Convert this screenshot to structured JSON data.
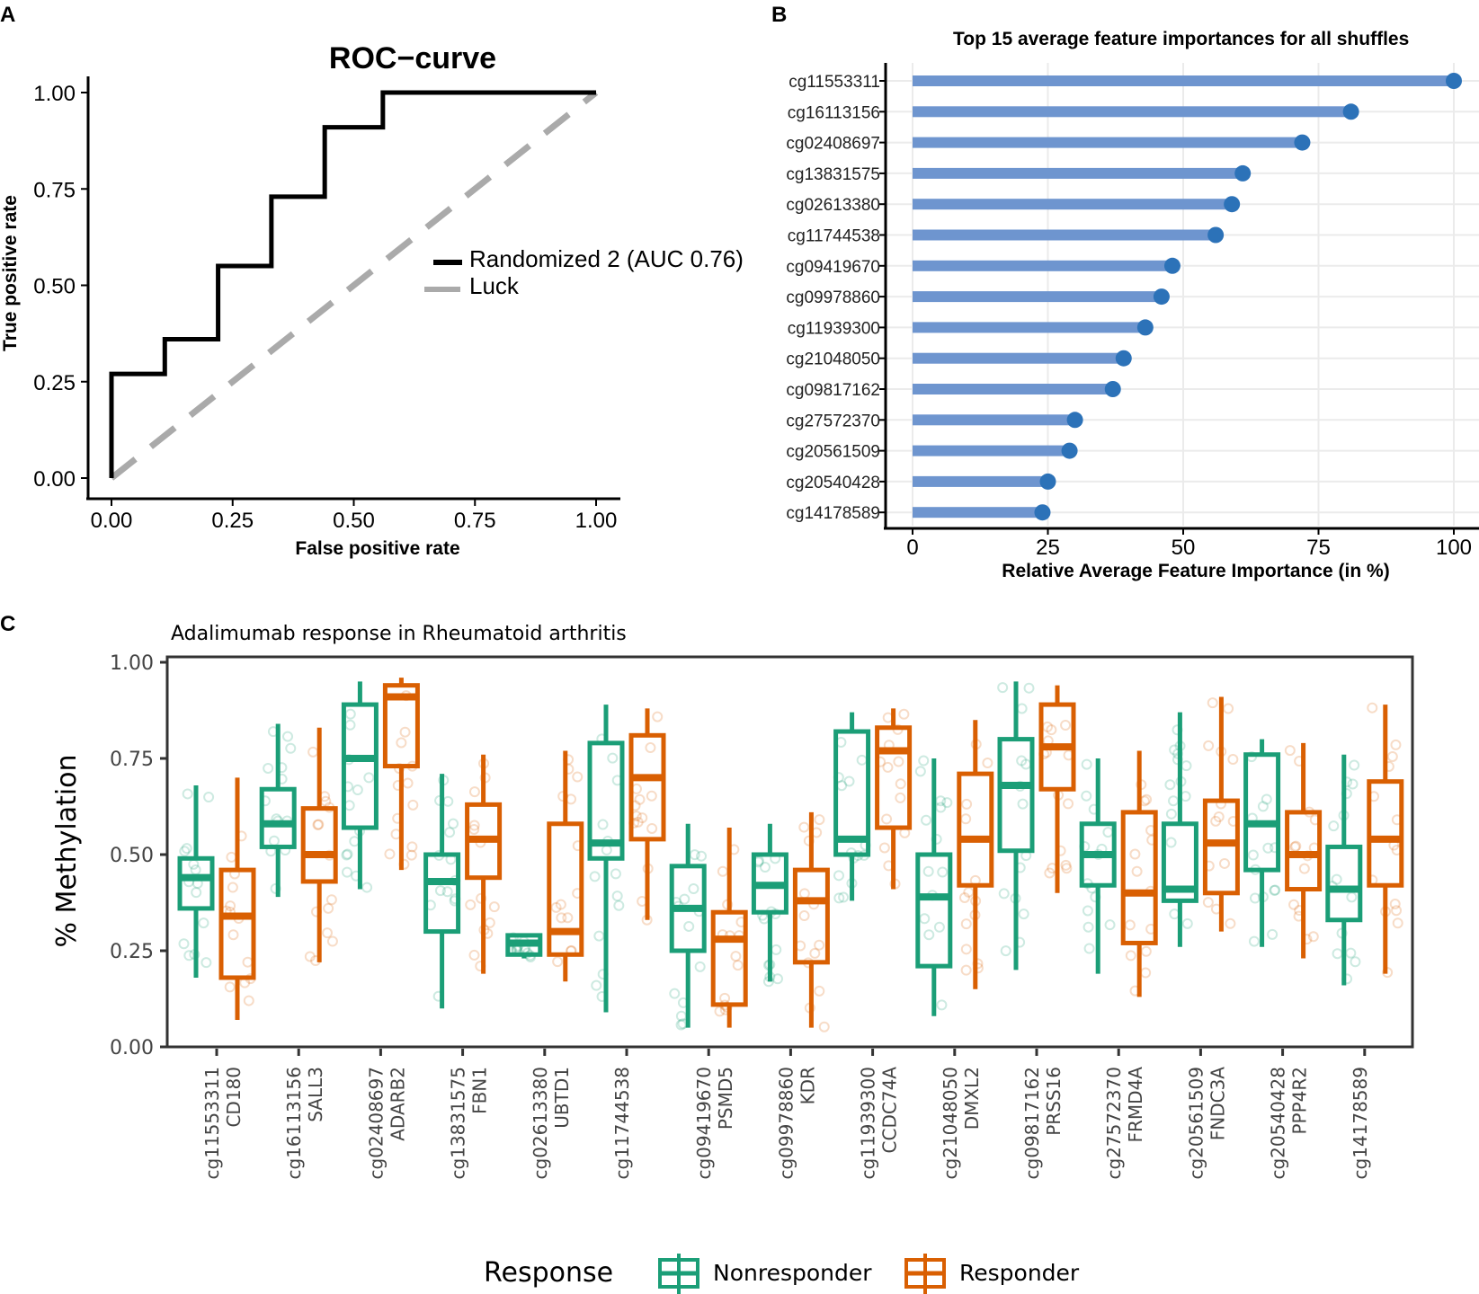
{
  "panel_labels": {
    "a": "A",
    "b": "B",
    "c": "C"
  },
  "colors": {
    "roc_line": "#000000",
    "luck_line": "#aaaaaa",
    "bar": "#6e95cf",
    "dot": "#2c72b8",
    "nonresponder": "#1b9e77",
    "responder": "#d95f02",
    "grid": "#ebebeb"
  },
  "chart_data": [
    {
      "type": "line",
      "title": "ROC−curve",
      "xlabel": "False positive rate",
      "ylabel": "True positive rate",
      "xlim": [
        0,
        1
      ],
      "ylim": [
        0,
        1
      ],
      "x_ticks": [
        "0.00",
        "0.25",
        "0.50",
        "0.75",
        "1.00"
      ],
      "y_ticks": [
        "0.00",
        "0.25",
        "0.50",
        "0.75",
        "1.00"
      ],
      "series": [
        {
          "name": "Randomized 2 (AUC 0.76)",
          "x": [
            0,
            0,
            0.11,
            0.11,
            0.22,
            0.22,
            0.33,
            0.33,
            0.44,
            0.44,
            0.56,
            0.56,
            1.0
          ],
          "y": [
            0,
            0.27,
            0.27,
            0.36,
            0.36,
            0.55,
            0.55,
            0.73,
            0.73,
            0.91,
            0.91,
            1.0,
            1.0
          ]
        },
        {
          "name": "Luck",
          "x": [
            0,
            1
          ],
          "y": [
            0,
            1
          ]
        }
      ],
      "legend": [
        "Randomized 2 (AUC 0.76)",
        "Luck"
      ]
    },
    {
      "type": "bar",
      "title": "Top 15 average feature importances for all shuffles",
      "xlabel": "Relative Average Feature Importance (in %)",
      "ylabel": "",
      "xlim": [
        0,
        100
      ],
      "x_ticks": [
        "0",
        "25",
        "50",
        "75",
        "100"
      ],
      "categories": [
        "cg11553311",
        "cg16113156",
        "cg02408697",
        "cg13831575",
        "cg02613380",
        "cg11744538",
        "cg09419670",
        "cg09978860",
        "cg11939300",
        "cg21048050",
        "cg09817162",
        "cg27572370",
        "cg20561509",
        "cg20540428",
        "cg14178589"
      ],
      "values": [
        100,
        81,
        72,
        61,
        59,
        56,
        48,
        46,
        43,
        39,
        37,
        30,
        29,
        25,
        24
      ]
    },
    {
      "type": "box",
      "title": "Adalimumab response in Rheumatoid arthritis",
      "xlabel": "",
      "ylabel": "% Methylation",
      "ylim": [
        0,
        1
      ],
      "y_ticks": [
        "0.00",
        "0.25",
        "0.50",
        "0.75",
        "1.00"
      ],
      "legend_title": "Response",
      "series_names": [
        "Nonresponder",
        "Responder"
      ],
      "categories": [
        {
          "cg": "cg11553311",
          "gene": "CD180"
        },
        {
          "cg": "cg16113156",
          "gene": "SALL3"
        },
        {
          "cg": "cg02408697",
          "gene": "ADARB2"
        },
        {
          "cg": "cg13831575",
          "gene": "FBN1"
        },
        {
          "cg": "cg02613380",
          "gene": "UBTD1"
        },
        {
          "cg": "cg11744538",
          "gene": ""
        },
        {
          "cg": "cg09419670",
          "gene": "PSMD5"
        },
        {
          "cg": "cg09978860",
          "gene": "KDR"
        },
        {
          "cg": "cg11939300",
          "gene": "CCDC74A"
        },
        {
          "cg": "cg21048050",
          "gene": "DMXL2"
        },
        {
          "cg": "cg09817162",
          "gene": "PRSS16"
        },
        {
          "cg": "cg27572370",
          "gene": "FRMD4A"
        },
        {
          "cg": "cg20561509",
          "gene": "FNDC3A"
        },
        {
          "cg": "cg20540428",
          "gene": "PPP4R2"
        },
        {
          "cg": "cg14178589",
          "gene": ""
        }
      ],
      "nonresponder": [
        [
          0.18,
          0.36,
          0.44,
          0.49,
          0.68
        ],
        [
          0.39,
          0.52,
          0.58,
          0.67,
          0.84
        ],
        [
          0.41,
          0.57,
          0.75,
          0.89,
          0.95
        ],
        [
          0.1,
          0.3,
          0.43,
          0.5,
          0.71
        ],
        [
          0.23,
          0.24,
          0.27,
          0.29,
          0.29
        ],
        [
          0.09,
          0.49,
          0.53,
          0.79,
          0.89
        ],
        [
          0.05,
          0.25,
          0.36,
          0.47,
          0.58
        ],
        [
          0.17,
          0.35,
          0.42,
          0.5,
          0.58
        ],
        [
          0.38,
          0.5,
          0.54,
          0.82,
          0.87
        ],
        [
          0.08,
          0.21,
          0.39,
          0.5,
          0.75
        ],
        [
          0.2,
          0.51,
          0.68,
          0.8,
          0.95
        ],
        [
          0.19,
          0.42,
          0.5,
          0.58,
          0.75
        ],
        [
          0.26,
          0.38,
          0.41,
          0.58,
          0.87
        ],
        [
          0.26,
          0.46,
          0.58,
          0.76,
          0.8
        ],
        [
          0.16,
          0.33,
          0.41,
          0.52,
          0.76
        ]
      ],
      "responder": [
        [
          0.07,
          0.18,
          0.34,
          0.46,
          0.7
        ],
        [
          0.22,
          0.43,
          0.5,
          0.62,
          0.83
        ],
        [
          0.46,
          0.73,
          0.91,
          0.94,
          0.96
        ],
        [
          0.19,
          0.44,
          0.54,
          0.63,
          0.76
        ],
        [
          0.17,
          0.24,
          0.3,
          0.58,
          0.77
        ],
        [
          0.33,
          0.54,
          0.7,
          0.81,
          0.88
        ],
        [
          0.05,
          0.11,
          0.28,
          0.35,
          0.57
        ],
        [
          0.05,
          0.22,
          0.38,
          0.46,
          0.61
        ],
        [
          0.41,
          0.57,
          0.77,
          0.83,
          0.88
        ],
        [
          0.15,
          0.42,
          0.54,
          0.71,
          0.85
        ],
        [
          0.4,
          0.67,
          0.78,
          0.89,
          0.94
        ],
        [
          0.13,
          0.27,
          0.4,
          0.61,
          0.77
        ],
        [
          0.3,
          0.4,
          0.53,
          0.64,
          0.91
        ],
        [
          0.23,
          0.41,
          0.5,
          0.61,
          0.79
        ],
        [
          0.19,
          0.42,
          0.54,
          0.69,
          0.89
        ]
      ]
    }
  ]
}
